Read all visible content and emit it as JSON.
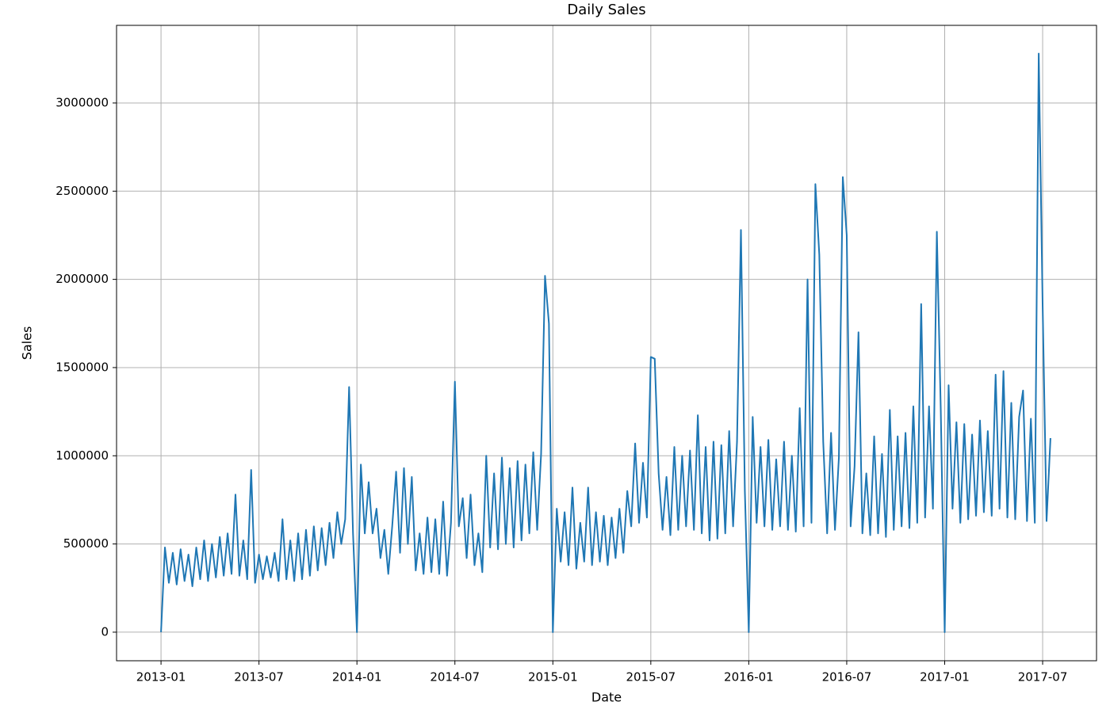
{
  "chart_data": {
    "type": "line",
    "title": "Daily Sales",
    "x_label": "Date",
    "y_label": "Sales",
    "color": "#1f77b4",
    "grid": true,
    "xlim": [
      2012.773,
      2017.775
    ],
    "ylim": [
      -162000,
      3440000
    ],
    "xticks": [
      {
        "value": 2013,
        "label": "2013-01"
      },
      {
        "value": 2013.5,
        "label": "2013-07"
      },
      {
        "value": 2014,
        "label": "2014-01"
      },
      {
        "value": 2014.5,
        "label": "2014-07"
      },
      {
        "value": 2015,
        "label": "2015-01"
      },
      {
        "value": 2015.5,
        "label": "2015-07"
      },
      {
        "value": 2016,
        "label": "2016-01"
      },
      {
        "value": 2016.5,
        "label": "2016-07"
      },
      {
        "value": 2017,
        "label": "2017-01"
      },
      {
        "value": 2017.5,
        "label": "2017-07"
      }
    ],
    "yticks": [
      0,
      500000,
      1000000,
      1500000,
      2000000,
      2500000,
      3000000
    ],
    "x": [
      2013.0,
      2013.02,
      2013.04,
      2013.06,
      2013.08,
      2013.1,
      2013.12,
      2013.14,
      2013.16,
      2013.18,
      2013.2,
      2013.22,
      2013.24,
      2013.26,
      2013.28,
      2013.3,
      2013.32,
      2013.34,
      2013.36,
      2013.38,
      2013.4,
      2013.42,
      2013.44,
      2013.46,
      2013.48,
      2013.5,
      2013.52,
      2013.54,
      2013.56,
      2013.58,
      2013.6,
      2013.62,
      2013.64,
      2013.66,
      2013.68,
      2013.7,
      2013.72,
      2013.74,
      2013.76,
      2013.78,
      2013.8,
      2013.82,
      2013.84,
      2013.86,
      2013.88,
      2013.9,
      2013.92,
      2013.94,
      2013.96,
      2013.98,
      2014.0,
      2014.02,
      2014.04,
      2014.06,
      2014.08,
      2014.1,
      2014.12,
      2014.14,
      2014.16,
      2014.18,
      2014.2,
      2014.22,
      2014.24,
      2014.26,
      2014.28,
      2014.3,
      2014.32,
      2014.34,
      2014.36,
      2014.38,
      2014.4,
      2014.42,
      2014.44,
      2014.46,
      2014.48,
      2014.5,
      2014.52,
      2014.54,
      2014.56,
      2014.58,
      2014.6,
      2014.62,
      2014.64,
      2014.66,
      2014.68,
      2014.7,
      2014.72,
      2014.74,
      2014.76,
      2014.78,
      2014.8,
      2014.82,
      2014.84,
      2014.86,
      2014.88,
      2014.9,
      2014.92,
      2014.94,
      2014.96,
      2014.98,
      2015.0,
      2015.02,
      2015.04,
      2015.06,
      2015.08,
      2015.1,
      2015.12,
      2015.14,
      2015.16,
      2015.18,
      2015.2,
      2015.22,
      2015.24,
      2015.26,
      2015.28,
      2015.3,
      2015.32,
      2015.34,
      2015.36,
      2015.38,
      2015.4,
      2015.42,
      2015.44,
      2015.46,
      2015.48,
      2015.5,
      2015.52,
      2015.54,
      2015.56,
      2015.58,
      2015.6,
      2015.62,
      2015.64,
      2015.66,
      2015.68,
      2015.7,
      2015.72,
      2015.74,
      2015.76,
      2015.78,
      2015.8,
      2015.82,
      2015.84,
      2015.86,
      2015.88,
      2015.9,
      2015.92,
      2015.94,
      2015.96,
      2015.98,
      2016.0,
      2016.02,
      2016.04,
      2016.06,
      2016.08,
      2016.1,
      2016.12,
      2016.14,
      2016.16,
      2016.18,
      2016.2,
      2016.22,
      2016.24,
      2016.26,
      2016.28,
      2016.3,
      2016.32,
      2016.34,
      2016.36,
      2016.38,
      2016.4,
      2016.42,
      2016.44,
      2016.46,
      2016.48,
      2016.5,
      2016.52,
      2016.54,
      2016.56,
      2016.58,
      2016.6,
      2016.62,
      2016.64,
      2016.66,
      2016.68,
      2016.7,
      2016.72,
      2016.74,
      2016.76,
      2016.78,
      2016.8,
      2016.82,
      2016.84,
      2016.86,
      2016.88,
      2016.9,
      2016.92,
      2016.94,
      2016.96,
      2016.98,
      2017.0,
      2017.02,
      2017.04,
      2017.06,
      2017.08,
      2017.1,
      2017.12,
      2017.14,
      2017.16,
      2017.18,
      2017.2,
      2017.22,
      2017.24,
      2017.26,
      2017.28,
      2017.3,
      2017.32,
      2017.34,
      2017.36,
      2017.38,
      2017.4,
      2017.42,
      2017.44,
      2017.46,
      2017.48,
      2017.5,
      2017.52,
      2017.54
    ],
    "values": [
      0,
      480000,
      280000,
      450000,
      270000,
      470000,
      290000,
      440000,
      260000,
      480000,
      300000,
      520000,
      290000,
      500000,
      310000,
      540000,
      320000,
      560000,
      330000,
      780000,
      320000,
      520000,
      300000,
      920000,
      280000,
      440000,
      300000,
      430000,
      310000,
      450000,
      290000,
      640000,
      300000,
      520000,
      290000,
      560000,
      300000,
      580000,
      320000,
      600000,
      350000,
      590000,
      380000,
      620000,
      420000,
      680000,
      500000,
      640000,
      1390000,
      560000,
      0,
      950000,
      560000,
      850000,
      560000,
      700000,
      420000,
      580000,
      330000,
      600000,
      910000,
      450000,
      930000,
      500000,
      880000,
      350000,
      560000,
      330000,
      650000,
      340000,
      640000,
      330000,
      740000,
      320000,
      620000,
      1420000,
      600000,
      760000,
      420000,
      780000,
      380000,
      560000,
      340000,
      1000000,
      480000,
      900000,
      470000,
      990000,
      500000,
      930000,
      480000,
      970000,
      520000,
      950000,
      560000,
      1020000,
      580000,
      1010000,
      2020000,
      1750000,
      0,
      700000,
      400000,
      680000,
      380000,
      820000,
      360000,
      620000,
      400000,
      820000,
      380000,
      680000,
      400000,
      660000,
      380000,
      650000,
      420000,
      700000,
      450000,
      800000,
      600000,
      1070000,
      620000,
      960000,
      650000,
      1560000,
      1550000,
      900000,
      580000,
      880000,
      550000,
      1050000,
      580000,
      1000000,
      600000,
      1030000,
      580000,
      1230000,
      560000,
      1050000,
      520000,
      1080000,
      530000,
      1060000,
      560000,
      1140000,
      600000,
      1080000,
      2280000,
      800000,
      0,
      1220000,
      620000,
      1050000,
      600000,
      1090000,
      580000,
      980000,
      600000,
      1080000,
      580000,
      1000000,
      570000,
      1270000,
      600000,
      2000000,
      620000,
      2540000,
      2140000,
      1080000,
      560000,
      1130000,
      580000,
      990000,
      2580000,
      2250000,
      600000,
      940000,
      1700000,
      560000,
      900000,
      550000,
      1110000,
      560000,
      1010000,
      540000,
      1260000,
      580000,
      1110000,
      600000,
      1130000,
      590000,
      1280000,
      620000,
      1860000,
      650000,
      1280000,
      700000,
      2270000,
      1260000,
      0,
      1400000,
      700000,
      1190000,
      620000,
      1180000,
      640000,
      1120000,
      660000,
      1200000,
      680000,
      1140000,
      660000,
      1460000,
      700000,
      1480000,
      650000,
      1300000,
      640000,
      1220000,
      1370000,
      630000,
      1210000,
      620000,
      3280000,
      1850000,
      630000,
      1100000
    ]
  }
}
